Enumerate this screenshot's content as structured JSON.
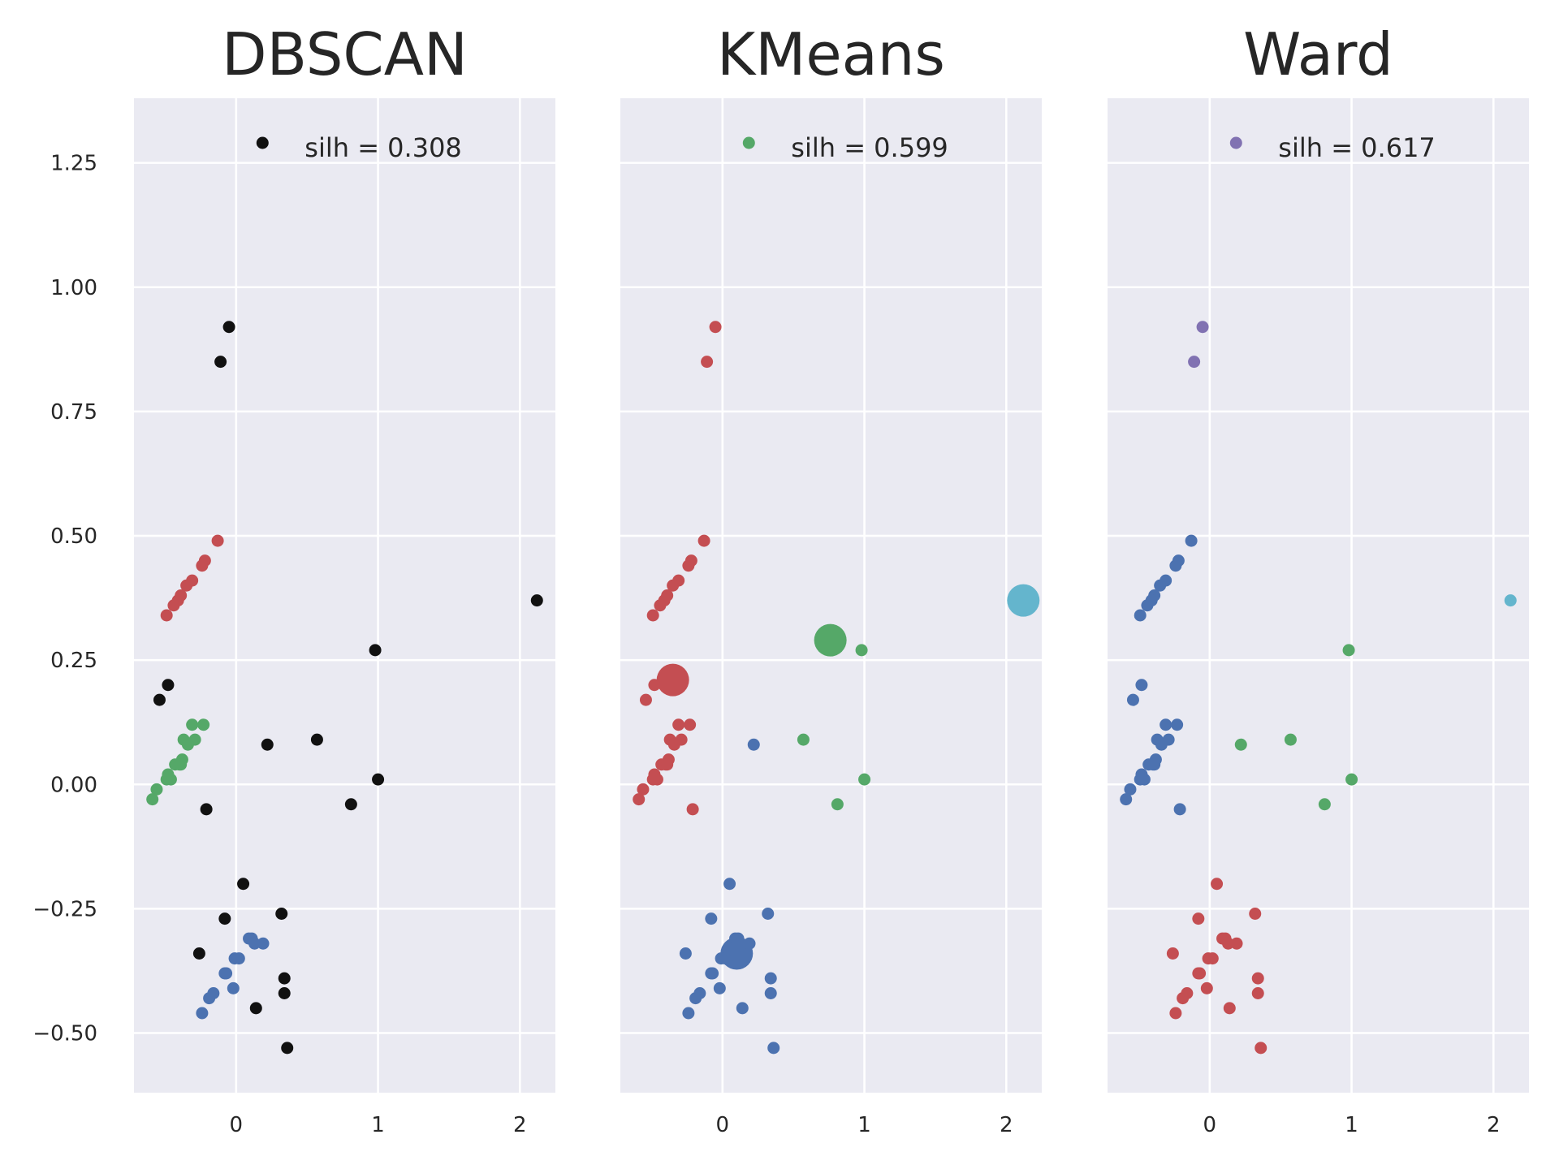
{
  "colors": {
    "background": "#eaeaf2",
    "grid": "#ffffff",
    "text": "#262626",
    "black": "#111111",
    "blue": "#4c72b0",
    "green": "#55a868",
    "red": "#c44e52",
    "purple": "#8172b2",
    "cyan": "#64b5cd"
  },
  "chart_data": [
    {
      "type": "scatter",
      "title": "DBSCAN",
      "xlim": [
        -0.72,
        2.25
      ],
      "ylim": [
        -0.62,
        1.38
      ],
      "xticks": [
        {
          "value": 0,
          "label": "0"
        },
        {
          "value": 1,
          "label": "1"
        },
        {
          "value": 2,
          "label": "2"
        }
      ],
      "yticks": [
        {
          "value": 1.25,
          "label": "1.25"
        },
        {
          "value": 1.0,
          "label": "1.00"
        },
        {
          "value": 0.75,
          "label": "0.75"
        },
        {
          "value": 0.5,
          "label": "0.50"
        },
        {
          "value": 0.25,
          "label": "0.25"
        },
        {
          "value": 0.0,
          "label": "0.00"
        },
        {
          "value": -0.25,
          "label": "−0.25"
        },
        {
          "value": -0.5,
          "label": "−0.50"
        }
      ],
      "show_yticklabels": true,
      "grid": true,
      "legend": {
        "label": "silh = 0.308",
        "color": "black",
        "placement": "top-right"
      },
      "series": [
        {
          "color": "black",
          "points": [
            [
              -0.05,
              0.92
            ],
            [
              -0.11,
              0.85
            ],
            [
              2.12,
              0.37
            ],
            [
              0.98,
              0.27
            ],
            [
              -0.48,
              0.2
            ],
            [
              -0.54,
              0.17
            ],
            [
              0.57,
              0.09
            ],
            [
              0.22,
              0.08
            ],
            [
              1.0,
              0.01
            ],
            [
              0.81,
              -0.04
            ],
            [
              -0.21,
              -0.05
            ],
            [
              0.05,
              -0.2
            ],
            [
              0.32,
              -0.26
            ],
            [
              -0.08,
              -0.27
            ],
            [
              -0.26,
              -0.34
            ],
            [
              0.34,
              -0.39
            ],
            [
              0.34,
              -0.42
            ],
            [
              0.14,
              -0.45
            ],
            [
              0.36,
              -0.53
            ]
          ]
        },
        {
          "color": "red",
          "points": [
            [
              -0.13,
              0.49
            ],
            [
              -0.22,
              0.45
            ],
            [
              -0.24,
              0.44
            ],
            [
              -0.31,
              0.41
            ],
            [
              -0.35,
              0.4
            ],
            [
              -0.39,
              0.38
            ],
            [
              -0.41,
              0.37
            ],
            [
              -0.44,
              0.36
            ],
            [
              -0.49,
              0.34
            ]
          ]
        },
        {
          "color": "green",
          "points": [
            [
              -0.31,
              0.12
            ],
            [
              -0.23,
              0.12
            ],
            [
              -0.37,
              0.09
            ],
            [
              -0.29,
              0.09
            ],
            [
              -0.34,
              0.08
            ],
            [
              -0.38,
              0.05
            ],
            [
              -0.4,
              0.04
            ],
            [
              -0.43,
              0.04
            ],
            [
              -0.39,
              0.04
            ],
            [
              -0.48,
              0.02
            ],
            [
              -0.46,
              0.01
            ],
            [
              -0.49,
              0.01
            ],
            [
              -0.56,
              -0.01
            ],
            [
              -0.59,
              -0.03
            ]
          ]
        },
        {
          "color": "blue",
          "points": [
            [
              0.11,
              -0.31
            ],
            [
              0.09,
              -0.31
            ],
            [
              0.19,
              -0.32
            ],
            [
              0.13,
              -0.32
            ],
            [
              0.02,
              -0.35
            ],
            [
              -0.01,
              -0.35
            ],
            [
              -0.08,
              -0.38
            ],
            [
              -0.07,
              -0.38
            ],
            [
              -0.02,
              -0.41
            ],
            [
              -0.16,
              -0.42
            ],
            [
              -0.19,
              -0.43
            ],
            [
              -0.24,
              -0.46
            ]
          ]
        }
      ]
    },
    {
      "type": "scatter",
      "title": "KMeans",
      "xlim": [
        -0.72,
        2.25
      ],
      "ylim": [
        -0.62,
        1.38
      ],
      "xticks": [
        {
          "value": 0,
          "label": "0"
        },
        {
          "value": 1,
          "label": "1"
        },
        {
          "value": 2,
          "label": "2"
        }
      ],
      "yticks": [
        {
          "value": 1.25
        },
        {
          "value": 1.0
        },
        {
          "value": 0.75
        },
        {
          "value": 0.5
        },
        {
          "value": 0.25
        },
        {
          "value": 0.0
        },
        {
          "value": -0.25
        },
        {
          "value": -0.5
        }
      ],
      "show_yticklabels": false,
      "grid": true,
      "legend": {
        "label": "silh = 0.599",
        "color": "green",
        "placement": "top-right"
      },
      "centroids": [
        {
          "color": "red",
          "point": [
            -0.35,
            0.21
          ]
        },
        {
          "color": "green",
          "point": [
            0.76,
            0.29
          ]
        },
        {
          "color": "cyan",
          "point": [
            2.12,
            0.37
          ]
        },
        {
          "color": "blue",
          "point": [
            0.1,
            -0.34
          ]
        }
      ],
      "series": [
        {
          "color": "red",
          "points": [
            [
              -0.05,
              0.92
            ],
            [
              -0.11,
              0.85
            ],
            [
              -0.13,
              0.49
            ],
            [
              -0.22,
              0.45
            ],
            [
              -0.24,
              0.44
            ],
            [
              -0.31,
              0.41
            ],
            [
              -0.35,
              0.4
            ],
            [
              -0.39,
              0.38
            ],
            [
              -0.41,
              0.37
            ],
            [
              -0.44,
              0.36
            ],
            [
              -0.49,
              0.34
            ],
            [
              -0.54,
              0.17
            ],
            [
              -0.48,
              0.2
            ],
            [
              -0.31,
              0.12
            ],
            [
              -0.23,
              0.12
            ],
            [
              -0.37,
              0.09
            ],
            [
              -0.29,
              0.09
            ],
            [
              -0.34,
              0.08
            ],
            [
              -0.38,
              0.05
            ],
            [
              -0.4,
              0.04
            ],
            [
              -0.43,
              0.04
            ],
            [
              -0.39,
              0.04
            ],
            [
              -0.48,
              0.02
            ],
            [
              -0.46,
              0.01
            ],
            [
              -0.49,
              0.01
            ],
            [
              -0.56,
              -0.01
            ],
            [
              -0.59,
              -0.03
            ],
            [
              -0.21,
              -0.05
            ]
          ]
        },
        {
          "color": "green",
          "points": [
            [
              0.98,
              0.27
            ],
            [
              0.57,
              0.09
            ],
            [
              1.0,
              0.01
            ],
            [
              0.81,
              -0.04
            ]
          ]
        },
        {
          "color": "blue",
          "points": [
            [
              0.22,
              0.08
            ],
            [
              0.05,
              -0.2
            ],
            [
              0.32,
              -0.26
            ],
            [
              -0.08,
              -0.27
            ],
            [
              -0.26,
              -0.34
            ],
            [
              0.34,
              -0.39
            ],
            [
              0.34,
              -0.42
            ],
            [
              0.14,
              -0.45
            ],
            [
              0.36,
              -0.53
            ],
            [
              0.11,
              -0.31
            ],
            [
              0.09,
              -0.31
            ],
            [
              0.19,
              -0.32
            ],
            [
              0.13,
              -0.32
            ],
            [
              0.02,
              -0.35
            ],
            [
              -0.01,
              -0.35
            ],
            [
              -0.08,
              -0.38
            ],
            [
              -0.07,
              -0.38
            ],
            [
              -0.02,
              -0.41
            ],
            [
              -0.16,
              -0.42
            ],
            [
              -0.19,
              -0.43
            ],
            [
              -0.24,
              -0.46
            ]
          ]
        }
      ]
    },
    {
      "type": "scatter",
      "title": "Ward",
      "xlim": [
        -0.72,
        2.25
      ],
      "ylim": [
        -0.62,
        1.38
      ],
      "xticks": [
        {
          "value": 0,
          "label": "0"
        },
        {
          "value": 1,
          "label": "1"
        },
        {
          "value": 2,
          "label": "2"
        }
      ],
      "yticks": [
        {
          "value": 1.25
        },
        {
          "value": 1.0
        },
        {
          "value": 0.75
        },
        {
          "value": 0.5
        },
        {
          "value": 0.25
        },
        {
          "value": 0.0
        },
        {
          "value": -0.25
        },
        {
          "value": -0.5
        }
      ],
      "show_yticklabels": false,
      "grid": true,
      "legend": {
        "label": "silh = 0.617",
        "color": "purple",
        "placement": "top-right"
      },
      "series": [
        {
          "color": "purple",
          "points": [
            [
              -0.05,
              0.92
            ],
            [
              -0.11,
              0.85
            ]
          ]
        },
        {
          "color": "cyan",
          "points": [
            [
              2.12,
              0.37
            ]
          ]
        },
        {
          "color": "blue",
          "points": [
            [
              -0.13,
              0.49
            ],
            [
              -0.22,
              0.45
            ],
            [
              -0.24,
              0.44
            ],
            [
              -0.31,
              0.41
            ],
            [
              -0.35,
              0.4
            ],
            [
              -0.39,
              0.38
            ],
            [
              -0.41,
              0.37
            ],
            [
              -0.44,
              0.36
            ],
            [
              -0.49,
              0.34
            ],
            [
              -0.54,
              0.17
            ],
            [
              -0.48,
              0.2
            ],
            [
              -0.31,
              0.12
            ],
            [
              -0.23,
              0.12
            ],
            [
              -0.37,
              0.09
            ],
            [
              -0.29,
              0.09
            ],
            [
              -0.34,
              0.08
            ],
            [
              -0.38,
              0.05
            ],
            [
              -0.4,
              0.04
            ],
            [
              -0.43,
              0.04
            ],
            [
              -0.39,
              0.04
            ],
            [
              -0.48,
              0.02
            ],
            [
              -0.46,
              0.01
            ],
            [
              -0.49,
              0.01
            ],
            [
              -0.56,
              -0.01
            ],
            [
              -0.59,
              -0.03
            ],
            [
              -0.21,
              -0.05
            ]
          ]
        },
        {
          "color": "green",
          "points": [
            [
              0.98,
              0.27
            ],
            [
              0.57,
              0.09
            ],
            [
              0.22,
              0.08
            ],
            [
              1.0,
              0.01
            ],
            [
              0.81,
              -0.04
            ]
          ]
        },
        {
          "color": "red",
          "points": [
            [
              0.05,
              -0.2
            ],
            [
              0.32,
              -0.26
            ],
            [
              -0.08,
              -0.27
            ],
            [
              -0.26,
              -0.34
            ],
            [
              0.34,
              -0.39
            ],
            [
              0.34,
              -0.42
            ],
            [
              0.14,
              -0.45
            ],
            [
              0.36,
              -0.53
            ],
            [
              0.11,
              -0.31
            ],
            [
              0.09,
              -0.31
            ],
            [
              0.19,
              -0.32
            ],
            [
              0.13,
              -0.32
            ],
            [
              0.02,
              -0.35
            ],
            [
              -0.01,
              -0.35
            ],
            [
              -0.08,
              -0.38
            ],
            [
              -0.07,
              -0.38
            ],
            [
              -0.02,
              -0.41
            ],
            [
              -0.16,
              -0.42
            ],
            [
              -0.19,
              -0.43
            ],
            [
              -0.24,
              -0.46
            ]
          ]
        }
      ]
    }
  ]
}
